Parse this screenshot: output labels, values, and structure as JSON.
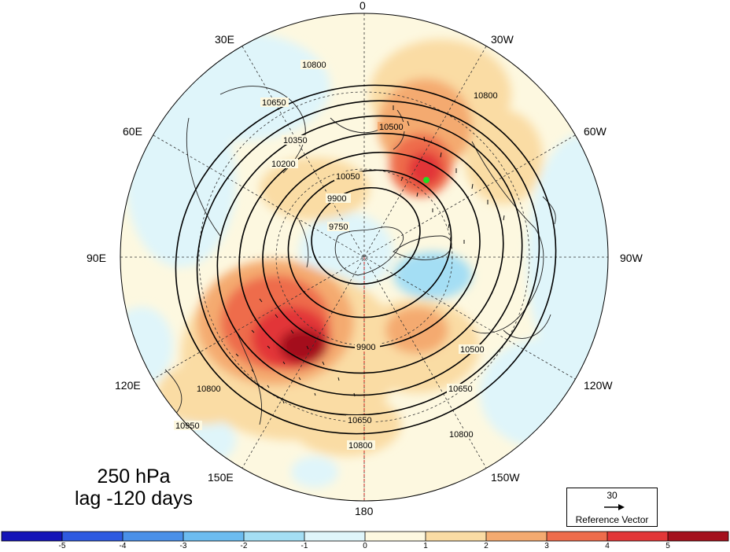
{
  "map": {
    "longitude_labels": {
      "lon_0": "0",
      "lon_30w": "30W",
      "lon_60w": "60W",
      "lon_90w": "90W",
      "lon_120w": "120W",
      "lon_150w": "150W",
      "lon_180": "180",
      "lon_150e": "150E",
      "lon_120e": "120E",
      "lon_90e": "90E",
      "lon_60e": "60E",
      "lon_30e": "30E"
    },
    "contour_labels": [
      "9750",
      "9900",
      "10050",
      "10200",
      "10350",
      "10500",
      "10650",
      "10800",
      "10950"
    ],
    "highlight_point_color": "#22dd22"
  },
  "caption": {
    "level": "250 hPa",
    "lag": "lag -120 days"
  },
  "reference_vector": {
    "magnitude": "30",
    "label": "Reference Vector"
  },
  "colorbar": {
    "ticks": [
      "-5",
      "-4",
      "-3",
      "-2",
      "-1",
      "0",
      "1",
      "2",
      "3",
      "4",
      "5"
    ],
    "colors": [
      "#1515b8",
      "#2e5ae0",
      "#4a90e8",
      "#6cbcf0",
      "#a4def4",
      "#dff5fa",
      "#fdf8e0",
      "#fadca4",
      "#f4aa70",
      "#ee6c4c",
      "#e23638",
      "#a4101c"
    ]
  }
}
